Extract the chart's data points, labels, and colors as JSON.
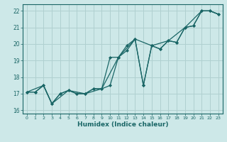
{
  "xlabel": "Humidex (Indice chaleur)",
  "xlim": [
    -0.5,
    23.5
  ],
  "ylim": [
    15.8,
    22.4
  ],
  "yticks": [
    16,
    17,
    18,
    19,
    20,
    21,
    22
  ],
  "xticks": [
    0,
    1,
    2,
    3,
    4,
    5,
    6,
    7,
    8,
    9,
    10,
    11,
    12,
    13,
    14,
    15,
    16,
    17,
    18,
    19,
    20,
    21,
    22,
    23
  ],
  "bg_color": "#cde8e8",
  "grid_color": "#b0d0d0",
  "line_color": "#1a6666",
  "line1_x": [
    0,
    1,
    2,
    3,
    4,
    5,
    6,
    7,
    8,
    9,
    10,
    11,
    12,
    13,
    14,
    15,
    16,
    17,
    18,
    19,
    20,
    21,
    22,
    23
  ],
  "line1_y": [
    17.1,
    17.1,
    17.5,
    16.4,
    17.0,
    17.2,
    17.0,
    17.0,
    17.3,
    17.3,
    17.5,
    19.2,
    19.6,
    20.3,
    17.5,
    19.9,
    19.7,
    20.2,
    20.1,
    21.0,
    21.1,
    22.0,
    22.0,
    21.8
  ],
  "line2_x": [
    0,
    1,
    2,
    3,
    4,
    5,
    6,
    7,
    8,
    9,
    10,
    11,
    12,
    13,
    14,
    15,
    16,
    17,
    18,
    19,
    20,
    21,
    22,
    23
  ],
  "line2_y": [
    17.1,
    17.1,
    17.5,
    16.4,
    17.0,
    17.2,
    17.0,
    17.0,
    17.3,
    17.3,
    19.2,
    19.2,
    19.9,
    20.3,
    17.5,
    19.9,
    19.7,
    20.2,
    20.1,
    21.0,
    21.1,
    22.0,
    22.0,
    21.8
  ],
  "line3_x": [
    0,
    2,
    3,
    5,
    7,
    9,
    11,
    13,
    15,
    17,
    19,
    21,
    22,
    23
  ],
  "line3_y": [
    17.1,
    17.5,
    16.4,
    17.2,
    17.0,
    17.3,
    19.2,
    20.3,
    19.9,
    20.2,
    21.0,
    22.0,
    22.0,
    21.8
  ]
}
